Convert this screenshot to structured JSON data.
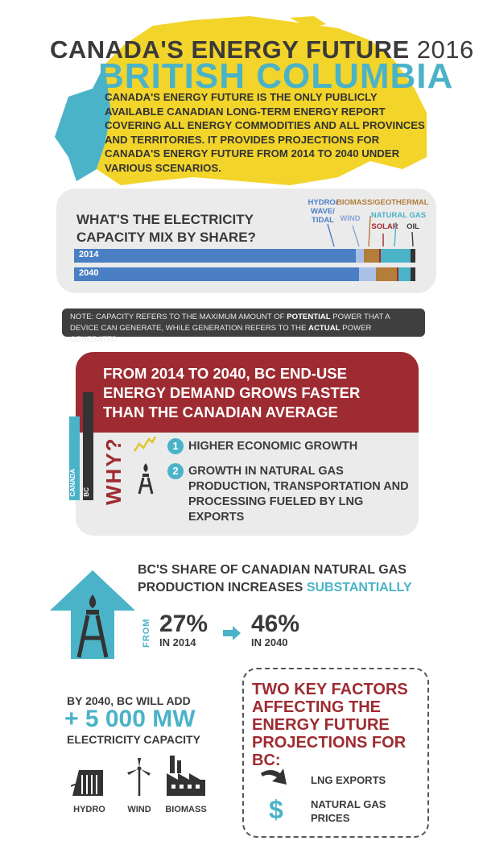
{
  "header": {
    "title": "CANADA'S ENERGY FUTURE",
    "year": "2016",
    "region": "BRITISH COLUMBIA",
    "intro": "CANADA'S ENERGY FUTURE IS THE ONLY PUBLICLY AVAILABLE CANADIAN LONG-TERM ENERGY REPORT COVERING ALL ENERGY COMMODITIES AND ALL PROVINCES AND TERRITORIES. IT PROVIDES PROJECTIONS FOR CANADA'S ENERGY FUTURE FROM 2014 TO 2040 UNDER VARIOUS SCENARIOS."
  },
  "electricity": {
    "question": "WHAT'S THE ELECTRICITY CAPACITY MIX BY SHARE?",
    "legend": {
      "hydro": "HYDRO/ WAVE/ TIDAL",
      "wind": "WIND",
      "biomass": "BIOMASS/GEOTHERMAL",
      "solar": "SOLAR",
      "gas": "NATURAL GAS",
      "oil": "OIL"
    },
    "bars": [
      {
        "label": "2014",
        "shares": [
          0.825,
          0.025,
          0.045,
          0.003,
          0.087,
          0.015
        ]
      },
      {
        "label": "2040",
        "shares": [
          0.835,
          0.05,
          0.06,
          0.005,
          0.035,
          0.015
        ]
      }
    ],
    "colors": [
      "#4a7fc4",
      "#a8c0e6",
      "#b27e3a",
      "#9e2b31",
      "#4ab3c8",
      "#333333"
    ],
    "legend_colors": {
      "hydro": "#4a7fc4",
      "wind": "#8aa5d6",
      "biomass": "#b27e3a",
      "solar": "#9e2b31",
      "gas": "#4ab3c8",
      "oil": "#3a3a3a"
    }
  },
  "note": {
    "part1": "NOTE: CAPACITY REFERS TO THE MAXIMUM AMOUNT OF ",
    "bold1": "POTENTIAL",
    "part2": " POWER THAT A DEVICE CAN GENERATE, WHILE GENERATION REFERS TO THE ",
    "bold2": "ACTUAL",
    "part3": " POWER GENERATED"
  },
  "demand": {
    "headline": "FROM 2014 TO 2040, BC END-USE ENERGY DEMAND GROWS FASTER THAN THE CANADIAN AVERAGE",
    "canada_label": "CANADA",
    "bc_label": "BC",
    "why": "WHY?",
    "reasons": [
      {
        "num": "1",
        "text": "HIGHER ECONOMIC GROWTH"
      },
      {
        "num": "2",
        "text": "GROWTH IN NATURAL GAS PRODUCTION, TRANSPORTATION AND PROCESSING FUELED BY LNG EXPORTS"
      }
    ]
  },
  "gas": {
    "title": "BC'S SHARE OF CANADIAN NATURAL GAS PRODUCTION INCREASES",
    "highlight": "SUBSTANTIALLY",
    "from": "FROM",
    "start_pct": "27%",
    "start_year": "IN 2014",
    "end_pct": "46%",
    "end_year": "IN 2040"
  },
  "capacity": {
    "line1": "BY 2040, BC WILL ADD",
    "amount": "+ 5 000 MW",
    "line3": "ELECTRICITY CAPACITY",
    "icons": [
      {
        "name": "hydro-icon",
        "label": "HYDRO"
      },
      {
        "name": "wind-icon",
        "label": "WIND"
      },
      {
        "name": "biomass-icon",
        "label": "BIOMASS"
      }
    ]
  },
  "factors": {
    "title": "TWO KEY FACTORS AFFECTING THE ENERGY FUTURE PROJECTIONS FOR BC:",
    "items": [
      "LNG EXPORTS",
      "NATURAL GAS PRICES"
    ],
    "dollar": "$"
  }
}
